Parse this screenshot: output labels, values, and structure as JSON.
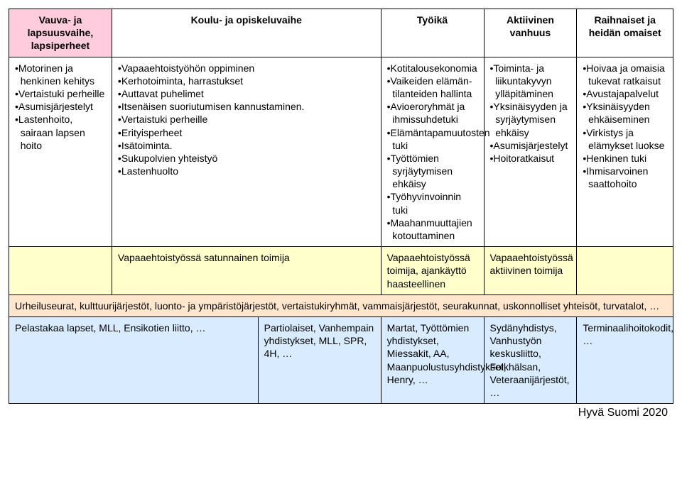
{
  "headers": {
    "c0": "Vauva- ja lapsuusvaihe, lapsiperheet",
    "c1": "Koulu- ja opiskeluvaihe",
    "c2": "Työikä",
    "c3": "Aktiivinen vanhuus",
    "c4": "Raihnaiset ja heidän omaiset"
  },
  "row1": {
    "c0": [
      "Motorinen ja henkinen kehitys",
      "Vertaistuki perheille",
      "Asumisjärjestelyt",
      "Lastenhoito, sairaan lapsen hoito"
    ],
    "c1": [
      "Vapaaehtoistyöhön oppiminen",
      "Kerhotoiminta, harrastukset",
      "Auttavat puhelimet",
      "Itsenäisen suoriutumisen kannustaminen.",
      "Vertaistuki perheille",
      "Erityisperheet",
      "Isätoiminta.",
      "Sukupolvien yhteistyö",
      "Lastenhuolto"
    ],
    "c2": [
      "Kotitalousekonomia",
      "Vaikeiden elämän-tilanteiden hallinta",
      "Avioeroryhmät ja ihmissuhdetuki",
      "Elämäntapamuutosten tuki",
      "Työttömien syrjäytymisen ehkäisy",
      "Työhyvinvoinnin tuki",
      "Maahanmuuttajien kotouttaminen"
    ],
    "c3": [
      "Toiminta- ja liikuntakyvyn ylläpitäminen",
      "Yksinäisyyden ja syrjäytymisen ehkäisy",
      "Asumisjärjestelyt",
      "Hoitoratkaisut"
    ],
    "c4": [
      "Hoivaa ja omaisia tukevat ratkaisut",
      "Avustajapalvelut",
      "Yksinäisyyden ehkäiseminen",
      "Virkistys ja elämykset luokse",
      "Henkinen tuki",
      "Ihmisarvoinen saattohoito"
    ]
  },
  "row2": {
    "c1": "Vapaaehtoistyössä satunnainen toimija",
    "c2": "Vapaaehtoistyössä toimija, ajankäyttö haasteellinen",
    "c3": "Vapaaehtoistyössä aktiivinen toimija"
  },
  "row3": {
    "full": "Urheiluseurat, kulttuurijärjestöt, luonto- ja ympäristöjärjestöt, vertaistukiryhmät, vammaisjärjestöt, seurakunnat, uskonnolliset yhteisöt, turvatalot, …"
  },
  "row4": {
    "c0": "Pelastakaa lapset, MLL, Ensikotien liitto, …",
    "c1": "Partiolaiset, Vanhempain yhdistykset, MLL, SPR, 4H, …",
    "c2": "Martat, Työttömien yhdistykset, Miessakit, AA, Maanpuolustusyhdistykset, Henry, …",
    "c3": "Sydänyhdistys, Vanhustyön keskusliitto, Folkhälsan, Veteraanijärjestöt, …",
    "c4": "Terminaalihoitokodit, …"
  },
  "footer": "Hyvä Suomi 2020"
}
